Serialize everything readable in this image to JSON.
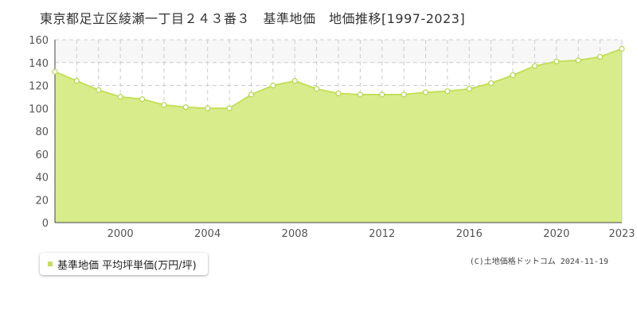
{
  "colors": {
    "fill": "#d9ec8c",
    "line": "#c3df5a",
    "marker_fill": "#ffffff",
    "marker_stroke": "#b5d64a",
    "grid": "#cccccc",
    "band_fill": "#f7f7f7",
    "axis": "#444444"
  },
  "chart_data": {
    "type": "area",
    "title": "東京都足立区綾瀬一丁目２４３番３　基準地価　地価推移[1997-2023]",
    "xlabel": "",
    "ylabel": "",
    "xlim": [
      1997,
      2023
    ],
    "ylim": [
      0,
      160
    ],
    "y_ticks": [
      0,
      20,
      40,
      60,
      80,
      100,
      120,
      140,
      160
    ],
    "x_ticks": [
      2000,
      2004,
      2008,
      2012,
      2016,
      2020,
      2023
    ],
    "grid": true,
    "legend_position": "bottom-left",
    "series": [
      {
        "name": "基準地価 平均坪単価(万円/坪)",
        "x": [
          1997,
          1998,
          1999,
          2000,
          2001,
          2002,
          2003,
          2004,
          2005,
          2006,
          2007,
          2008,
          2009,
          2010,
          2011,
          2012,
          2013,
          2014,
          2015,
          2016,
          2017,
          2018,
          2019,
          2020,
          2021,
          2022,
          2023
        ],
        "values": [
          132,
          124,
          116,
          110,
          108,
          103,
          101,
          100,
          100,
          112,
          120,
          124,
          117,
          113,
          112,
          112,
          112,
          114,
          115,
          117,
          122,
          129,
          137,
          141,
          142,
          145,
          152
        ]
      }
    ]
  },
  "credit": "(C)土地価格ドットコム 2024-11-19"
}
